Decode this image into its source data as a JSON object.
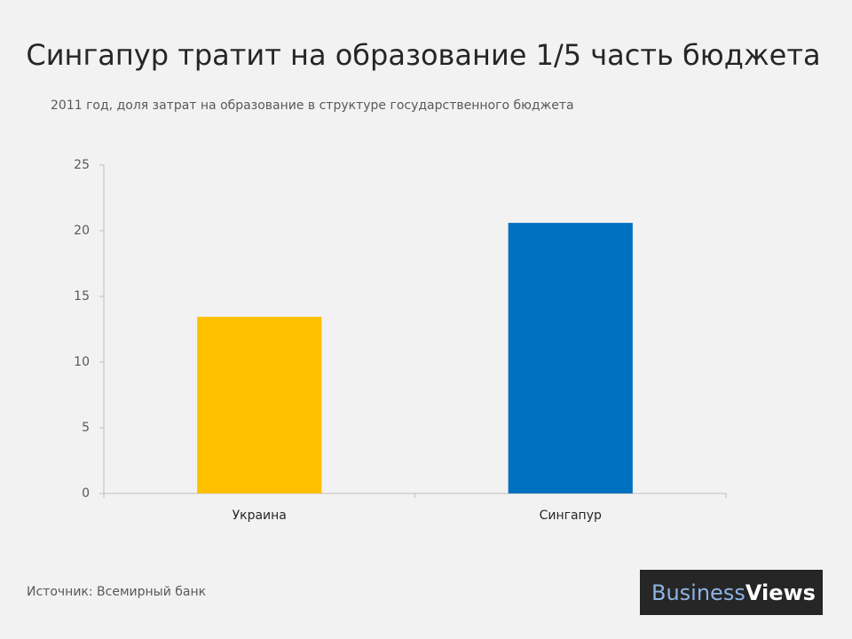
{
  "chart_data": {
    "type": "bar",
    "title": "Сингапур тратит на образование 1/5 часть бюджета",
    "subtitle": "2011 год, доля затрат на образование в структуре государственного бюджета",
    "categories": [
      "Украина",
      "Сингапур"
    ],
    "values": [
      13.45,
      20.6
    ],
    "colors": [
      "#ffc000",
      "#0070c0"
    ],
    "ylim": [
      0,
      25
    ],
    "yticks": [
      0,
      5,
      10,
      15,
      20,
      25
    ],
    "grid": false,
    "source": "Источник: Всемирный банк"
  },
  "logo": {
    "first": "Business",
    "second": "Views"
  }
}
